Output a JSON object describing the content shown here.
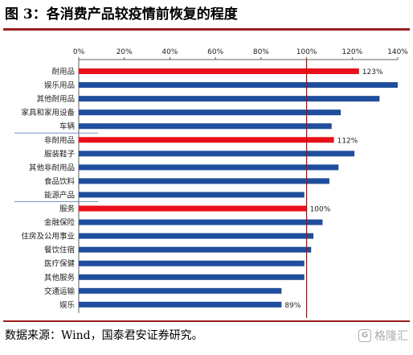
{
  "figure": {
    "title": "图 3：各消费产品较疫情前恢复的程度",
    "source": "数据来源：Wind，国泰君安证券研究。",
    "watermark": "格隆汇"
  },
  "chart_data": {
    "type": "bar",
    "orientation": "horizontal",
    "categories": [
      "耐用品",
      "娱乐用品",
      "其他耐用品",
      "家具和家用设备",
      "车辆",
      "非耐用品",
      "服装鞋子",
      "其他非耐用品",
      "食品饮料",
      "能源产品",
      "服务",
      "金融保险",
      "住房及公用事业",
      "餐饮住宿",
      "医疗保健",
      "其他服务",
      "交通运输",
      "娱乐"
    ],
    "values": [
      123,
      140,
      132,
      115,
      111,
      112,
      121,
      114,
      110,
      99,
      100,
      107,
      103,
      102,
      99,
      99,
      89,
      89
    ],
    "highlighted": [
      "耐用品",
      "非耐用品",
      "服务"
    ],
    "data_labels": [
      {
        "category": "耐用品",
        "text": "123%"
      },
      {
        "category": "非耐用品",
        "text": "112%"
      },
      {
        "category": "服务",
        "text": "100%"
      },
      {
        "category": "娱乐",
        "text": "89%"
      }
    ],
    "xlim": [
      0,
      140
    ],
    "xticks": [
      "0%",
      "20%",
      "40%",
      "60%",
      "80%",
      "100%",
      "120%",
      "140%"
    ],
    "reference_line": 100,
    "group_separators_after": [
      "车辆",
      "能源产品"
    ],
    "colors": {
      "bar": "#1f4e9c",
      "highlight": "#e8101a",
      "reference_line": "#c00000",
      "separator": "#7a95c4"
    },
    "grid": false,
    "legend": "none"
  }
}
